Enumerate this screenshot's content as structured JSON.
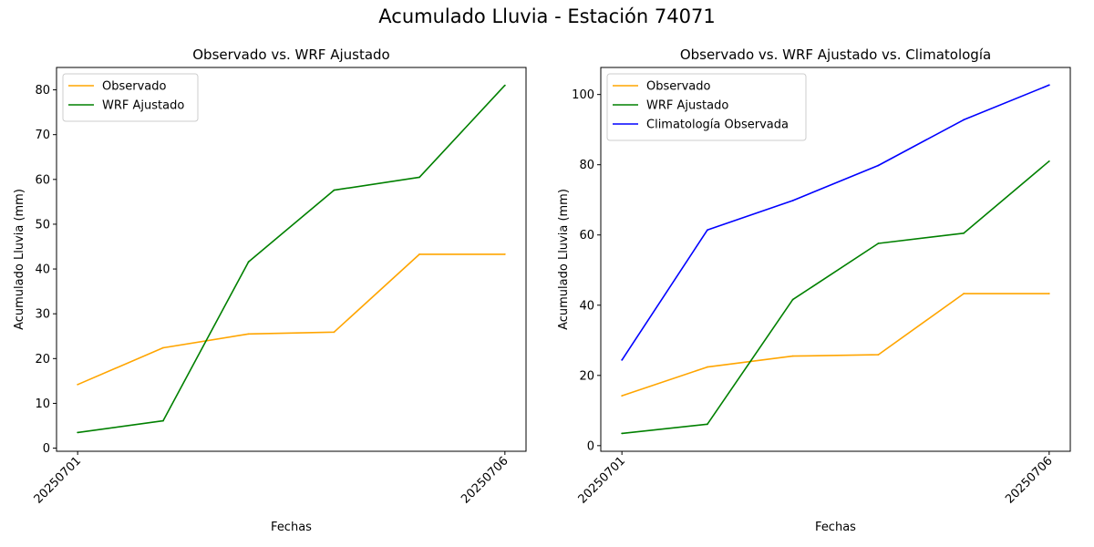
{
  "suptitle": "Acumulado Lluvia - Estación 74071",
  "colors": {
    "observado": "#ffa500",
    "wrf": "#008000",
    "climatologia": "#0000ff"
  },
  "chart_data": [
    {
      "type": "line",
      "title": "Observado vs. WRF Ajustado",
      "xlabel": "Fechas",
      "ylabel": "Acumulado Lluvia (mm)",
      "x": [
        "20250701",
        "20250702",
        "20250703",
        "20250704",
        "20250705",
        "20250706"
      ],
      "xtick_labels": [
        "20250701",
        "20250706"
      ],
      "yticks": [
        0,
        10,
        20,
        30,
        40,
        50,
        60,
        70,
        80
      ],
      "ylim": [
        -0.7,
        85
      ],
      "grid": false,
      "legend_position": "upper-left",
      "series": [
        {
          "name": "Observado",
          "color": "#ffa500",
          "values": [
            14.2,
            22.4,
            25.5,
            25.9,
            43.3,
            43.3
          ]
        },
        {
          "name": "WRF Ajustado",
          "color": "#008000",
          "values": [
            3.5,
            6.1,
            41.6,
            57.6,
            60.5,
            81.0
          ]
        }
      ]
    },
    {
      "type": "line",
      "title": "Observado vs. WRF Ajustado vs. Climatología",
      "xlabel": "Fechas",
      "ylabel": "Acumulado Lluvia (mm)",
      "x": [
        "20250701",
        "20250702",
        "20250703",
        "20250704",
        "20250705",
        "20250706"
      ],
      "xtick_labels": [
        "20250701",
        "20250706"
      ],
      "yticks": [
        0,
        20,
        40,
        60,
        80,
        100
      ],
      "ylim": [
        -1.6,
        107.7
      ],
      "grid": false,
      "legend_position": "upper-left",
      "series": [
        {
          "name": "Observado",
          "color": "#ffa500",
          "values": [
            14.2,
            22.4,
            25.5,
            25.9,
            43.3,
            43.3
          ]
        },
        {
          "name": "WRF Ajustado",
          "color": "#008000",
          "values": [
            3.5,
            6.1,
            41.6,
            57.6,
            60.5,
            81.0
          ]
        },
        {
          "name": "Climatología Observada",
          "color": "#0000ff",
          "values": [
            24.4,
            61.4,
            69.8,
            79.8,
            92.8,
            102.7
          ]
        }
      ]
    }
  ]
}
